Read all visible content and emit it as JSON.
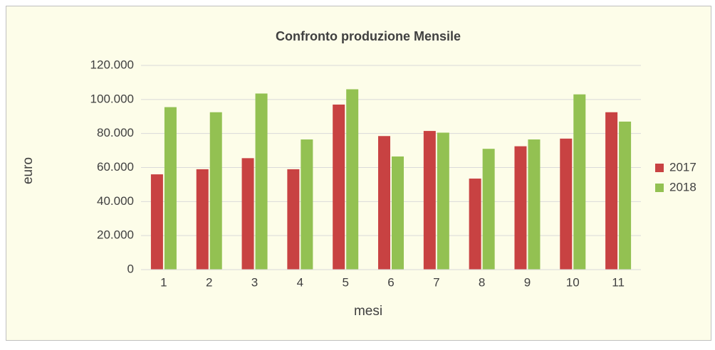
{
  "chart_data": {
    "type": "bar",
    "title": "Confronto produzione Mensile",
    "x_label": "mesi",
    "y_label": "euro",
    "categories": [
      "1",
      "2",
      "3",
      "4",
      "5",
      "6",
      "7",
      "8",
      "9",
      "10",
      "11"
    ],
    "series": [
      {
        "name": "2017",
        "color": "#c84242",
        "values": [
          56000,
          59000,
          65500,
          59000,
          97000,
          78500,
          81500,
          53500,
          72500,
          77000,
          92500
        ]
      },
      {
        "name": "2018",
        "color": "#93c152",
        "values": [
          95500,
          92500,
          103500,
          76500,
          106000,
          66500,
          80500,
          71000,
          76500,
          103000,
          87000
        ]
      }
    ],
    "ylim": [
      0,
      120000
    ],
    "yticks": [
      0,
      {
        "value": 20000,
        "label": "20.000"
      },
      {
        "value": 40000,
        "label": "40.000"
      },
      {
        "value": 60000,
        "label": "60.000"
      },
      {
        "value": 80000,
        "label": "80.000"
      },
      {
        "value": 100000,
        "label": "100.000"
      },
      {
        "value": 120000,
        "label": "120.000"
      }
    ],
    "grid": true,
    "legend": "right"
  }
}
